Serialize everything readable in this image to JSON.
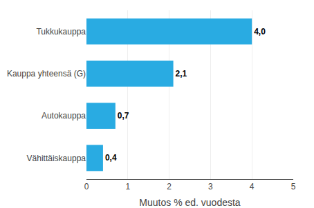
{
  "chart_data": {
    "type": "bar",
    "orientation": "horizontal",
    "categories": [
      "Vähittäiskauppa",
      "Autokauppa",
      "Kauppa yhteensä (G)",
      "Tukkukauppa"
    ],
    "values": [
      0.4,
      0.7,
      2.1,
      4.0
    ],
    "value_labels": [
      "0,4",
      "0,7",
      "2,1",
      "4,0"
    ],
    "data_labels": true,
    "color": "#29abe2",
    "xlabel": "Muutos % ed. vuodesta",
    "xlim": [
      0,
      5
    ],
    "xticks": [
      0,
      1,
      2,
      3,
      4,
      5
    ],
    "grid": true
  }
}
